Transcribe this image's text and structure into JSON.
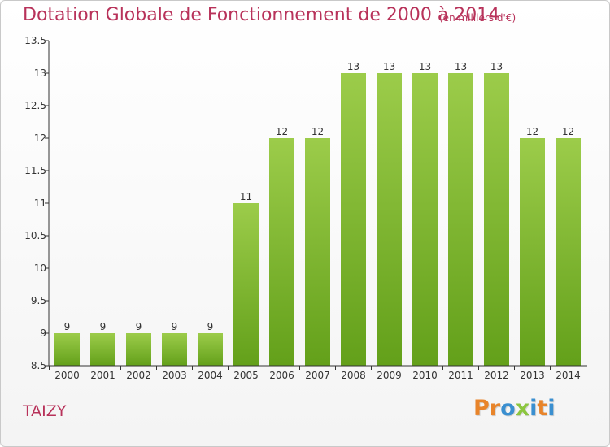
{
  "chart_data": {
    "type": "bar",
    "title": "Dotation Globale de Fonctionnement de 2000 à 2014",
    "subtitle": "(en milliers d'€)",
    "xlabel": "",
    "ylabel": "",
    "categories": [
      "2000",
      "2001",
      "2002",
      "2003",
      "2004",
      "2005",
      "2006",
      "2007",
      "2008",
      "2009",
      "2010",
      "2011",
      "2012",
      "2013",
      "2014"
    ],
    "values": [
      9,
      9,
      9,
      9,
      9,
      11,
      12,
      12,
      13,
      13,
      13,
      13,
      13,
      12,
      12
    ],
    "data_labels": [
      "9",
      "9",
      "9",
      "9",
      "9",
      "11",
      "12",
      "12",
      "13",
      "13",
      "13",
      "13",
      "13",
      "12",
      "12"
    ],
    "ylim": [
      8.5,
      13.5
    ],
    "yticks": [
      "8.5",
      "9",
      "9.5",
      "10",
      "10.5",
      "11",
      "11.5",
      "12",
      "12.5",
      "13",
      "13.5"
    ],
    "grid": false,
    "legend": "none",
    "bar_color_top": "#9ccc4a",
    "bar_color_bottom": "#63a01a"
  },
  "footer": {
    "location": "TAIZY",
    "brand_letters": [
      "P",
      "r",
      "o",
      "x",
      "i",
      "t",
      "i"
    ],
    "brand_colors": [
      "#e8842a",
      "#e8842a",
      "#3a8fd0",
      "#8cc63f",
      "#3a8fd0",
      "#e8842a",
      "#3a8fd0"
    ]
  },
  "colors": {
    "title": "#b8325a",
    "axis": "#333333"
  }
}
